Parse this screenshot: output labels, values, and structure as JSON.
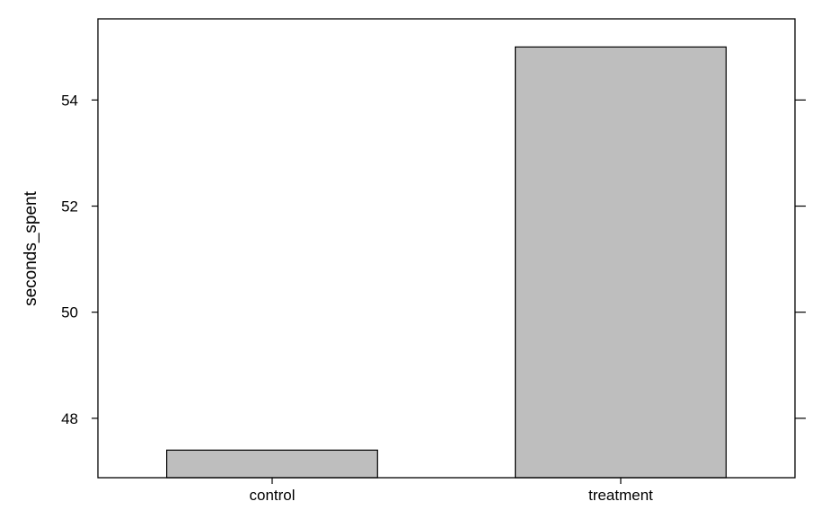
{
  "chart_data": {
    "type": "bar",
    "title": "",
    "xlabel": "",
    "ylabel": "seconds_spent",
    "categories": [
      "control",
      "treatment"
    ],
    "values": [
      47.4,
      55.0
    ],
    "ylim": [
      46.88,
      55.53
    ],
    "yticks": [
      48,
      50,
      52,
      54
    ],
    "ytick_labels": [
      "48",
      "50",
      "52",
      "54"
    ],
    "grid": false,
    "legend": "none",
    "bar_color": "#bebebe",
    "bar_edge_color": "#000000"
  }
}
